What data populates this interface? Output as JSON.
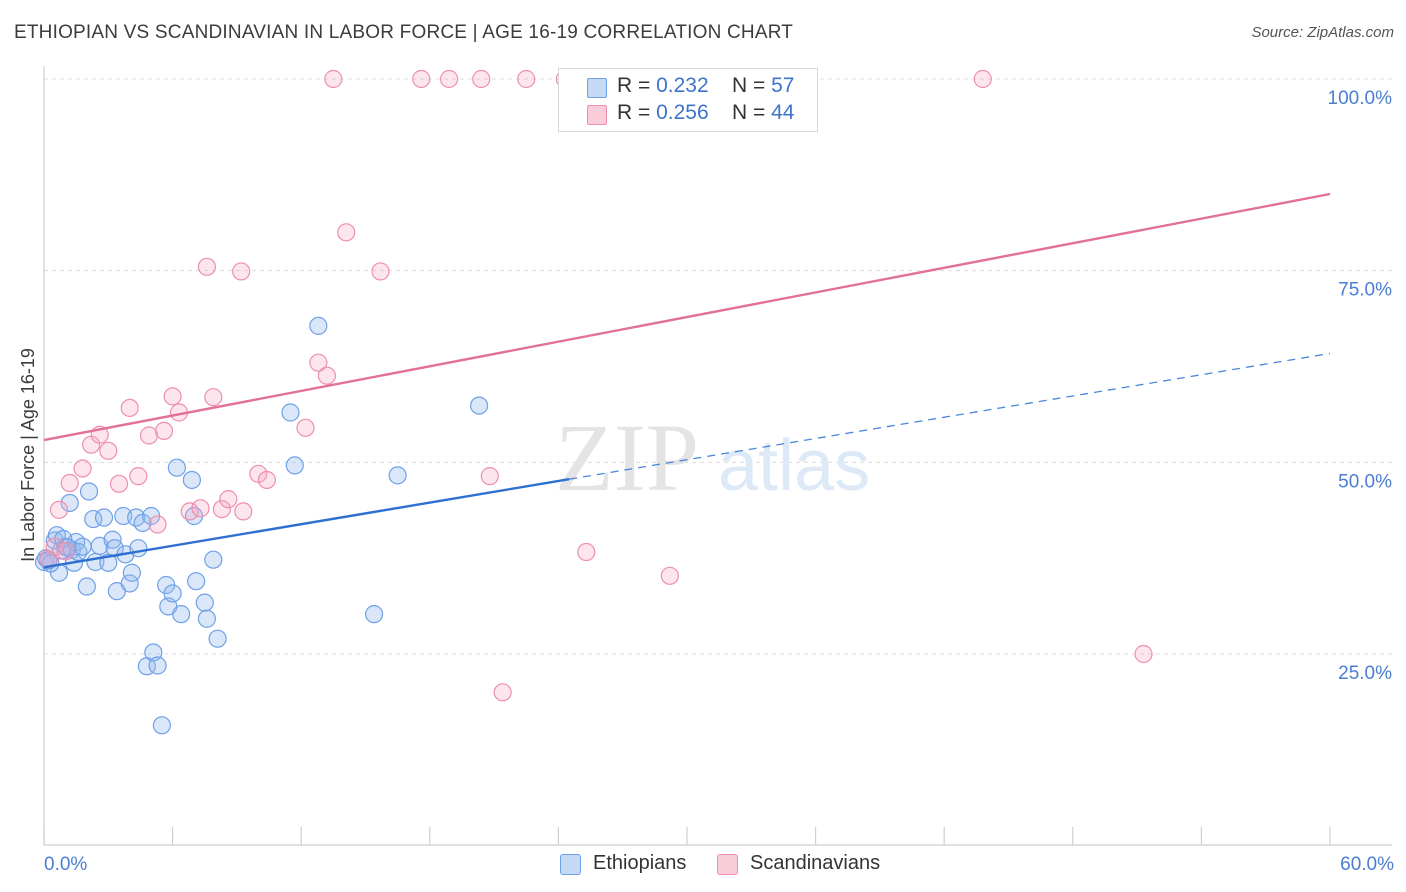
{
  "header": {
    "title": "ETHIOPIAN VS SCANDINAVIAN IN LABOR FORCE | AGE 16-19 CORRELATION CHART",
    "source": "Source: ZipAtlas.com"
  },
  "watermark": {
    "zip": "ZIP",
    "atlas": "atlas"
  },
  "legend": {
    "r_label": "R = ",
    "n_label": "N = ",
    "series": [
      {
        "name": "Ethiopians",
        "r": "0.232",
        "n": "57",
        "color": "#6fa0e8",
        "fill": "#c5d8f5"
      },
      {
        "name": "Scandinavians",
        "r": "0.256",
        "n": "44",
        "color": "#ee8fad",
        "fill": "#f9ccd9"
      }
    ]
  },
  "chart_data": {
    "type": "scatter",
    "title": "ETHIOPIAN VS SCANDINAVIAN IN LABOR FORCE | AGE 16-19 CORRELATION CHART",
    "xlabel": "",
    "ylabel": "In Labor Force | Age 16-19",
    "xlim": [
      0,
      60
    ],
    "ylim": [
      0,
      103
    ],
    "x_tick_labels": [
      "0.0%",
      "60.0%"
    ],
    "y_ticks": [
      25,
      50,
      75,
      100
    ],
    "y_tick_labels": [
      "25.0%",
      "50.0%",
      "75.0%",
      "100.0%"
    ],
    "grid": true,
    "series": [
      {
        "name": "Ethiopians",
        "color": "#4a86d9",
        "points": [
          [
            0.0,
            37.0
          ],
          [
            0.5,
            39.8
          ],
          [
            0.6,
            40.5
          ],
          [
            0.7,
            35.6
          ],
          [
            0.8,
            38.5
          ],
          [
            1.0,
            39.0
          ],
          [
            1.2,
            44.7
          ],
          [
            1.3,
            38.6
          ],
          [
            1.4,
            36.9
          ],
          [
            1.5,
            39.6
          ],
          [
            1.6,
            38.3
          ],
          [
            1.8,
            39.0
          ],
          [
            2.0,
            33.8
          ],
          [
            2.1,
            46.2
          ],
          [
            2.3,
            42.6
          ],
          [
            2.4,
            37.0
          ],
          [
            2.6,
            39.1
          ],
          [
            2.8,
            42.8
          ],
          [
            3.0,
            36.9
          ],
          [
            3.2,
            39.9
          ],
          [
            3.3,
            38.8
          ],
          [
            3.4,
            33.2
          ],
          [
            3.7,
            43.0
          ],
          [
            3.8,
            38.0
          ],
          [
            4.0,
            34.2
          ],
          [
            4.1,
            35.6
          ],
          [
            4.3,
            42.8
          ],
          [
            4.4,
            38.8
          ],
          [
            4.6,
            42.1
          ],
          [
            4.8,
            23.4
          ],
          [
            5.0,
            43.0
          ],
          [
            5.1,
            25.2
          ],
          [
            5.3,
            23.5
          ],
          [
            5.5,
            15.7
          ],
          [
            5.7,
            34.0
          ],
          [
            5.8,
            31.2
          ],
          [
            6.0,
            32.9
          ],
          [
            6.2,
            49.3
          ],
          [
            6.4,
            30.2
          ],
          [
            6.9,
            47.7
          ],
          [
            7.0,
            43.0
          ],
          [
            7.1,
            34.5
          ],
          [
            7.5,
            31.7
          ],
          [
            7.6,
            29.6
          ],
          [
            7.9,
            37.3
          ],
          [
            8.1,
            27.0
          ],
          [
            11.5,
            56.5
          ],
          [
            11.7,
            49.6
          ],
          [
            12.8,
            67.8
          ],
          [
            15.4,
            30.2
          ],
          [
            16.5,
            48.3
          ],
          [
            20.3,
            57.4
          ],
          [
            0.1,
            37.5
          ],
          [
            0.3,
            36.8
          ],
          [
            0.9,
            40.0
          ],
          [
            1.1,
            38.9
          ],
          [
            0.2,
            37.2
          ]
        ]
      },
      {
        "name": "Scandinavians",
        "color": "#e8729a",
        "points": [
          [
            0.2,
            37.4
          ],
          [
            0.7,
            43.8
          ],
          [
            1.2,
            47.3
          ],
          [
            1.8,
            49.2
          ],
          [
            2.2,
            52.3
          ],
          [
            2.6,
            53.6
          ],
          [
            3.0,
            51.5
          ],
          [
            3.5,
            47.2
          ],
          [
            4.0,
            57.1
          ],
          [
            4.4,
            48.2
          ],
          [
            4.9,
            53.5
          ],
          [
            5.3,
            41.9
          ],
          [
            5.6,
            54.1
          ],
          [
            6.0,
            58.6
          ],
          [
            6.3,
            56.5
          ],
          [
            6.8,
            43.6
          ],
          [
            7.3,
            44.0
          ],
          [
            7.6,
            75.5
          ],
          [
            7.9,
            58.5
          ],
          [
            8.3,
            43.9
          ],
          [
            8.6,
            45.2
          ],
          [
            9.2,
            74.9
          ],
          [
            9.3,
            43.6
          ],
          [
            10.0,
            48.5
          ],
          [
            10.4,
            47.7
          ],
          [
            12.2,
            54.5
          ],
          [
            12.8,
            63.0
          ],
          [
            13.2,
            61.3
          ],
          [
            14.1,
            80.0
          ],
          [
            15.7,
            74.9
          ],
          [
            13.5,
            100.0
          ],
          [
            17.6,
            100.0
          ],
          [
            18.9,
            100.0
          ],
          [
            20.4,
            100.0
          ],
          [
            22.5,
            100.0
          ],
          [
            24.3,
            100.0
          ],
          [
            43.8,
            100.0
          ],
          [
            20.8,
            48.2
          ],
          [
            25.3,
            38.3
          ],
          [
            29.2,
            35.2
          ],
          [
            21.4,
            20.0
          ],
          [
            51.3,
            25.0
          ],
          [
            0.5,
            39.0
          ],
          [
            1.0,
            38.4
          ]
        ]
      }
    ],
    "trendlines": [
      {
        "series": "Ethiopians",
        "solid": [
          [
            0,
            36.3
          ],
          [
            24.5,
            47.8
          ]
        ],
        "dashed": [
          [
            24.5,
            47.8
          ],
          [
            60,
            64.2
          ]
        ]
      },
      {
        "series": "Scandinavians",
        "solid": [
          [
            0,
            52.9
          ],
          [
            60,
            85.0
          ]
        ]
      }
    ]
  }
}
